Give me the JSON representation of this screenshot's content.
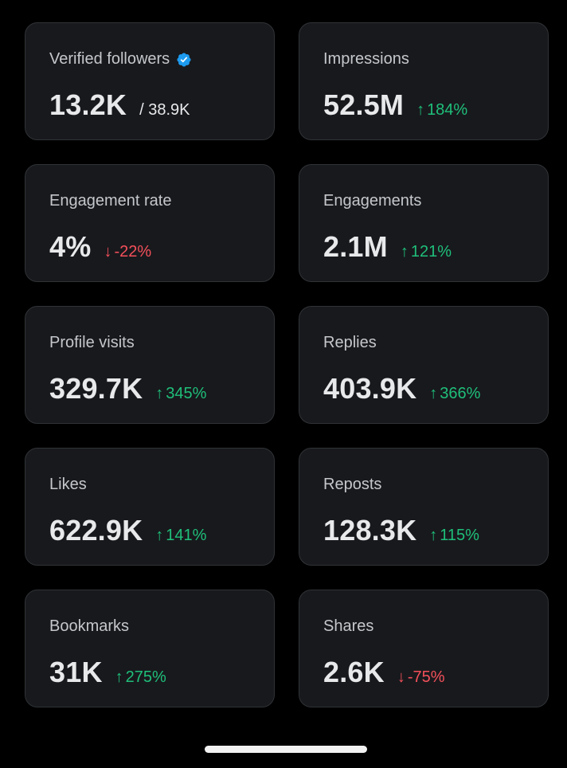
{
  "colors": {
    "background": "#000000",
    "card": "#18191d",
    "up": "#1fbf7a",
    "down": "#f4505a",
    "verified": "#1d9bf0"
  },
  "cards": [
    {
      "label": "Verified followers",
      "value": "13.2K",
      "total": "/ 38.9K",
      "verified_icon": "verified-badge-icon"
    },
    {
      "label": "Impressions",
      "value": "52.5M",
      "arrow": "↑",
      "change": "184%",
      "direction": "up"
    },
    {
      "label": "Engagement rate",
      "value": "4%",
      "arrow": "↓",
      "change": "-22%",
      "direction": "down"
    },
    {
      "label": "Engagements",
      "value": "2.1M",
      "arrow": "↑",
      "change": "121%",
      "direction": "up"
    },
    {
      "label": "Profile visits",
      "value": "329.7K",
      "arrow": "↑",
      "change": "345%",
      "direction": "up"
    },
    {
      "label": "Replies",
      "value": "403.9K",
      "arrow": "↑",
      "change": "366%",
      "direction": "up"
    },
    {
      "label": "Likes",
      "value": "622.9K",
      "arrow": "↑",
      "change": "141%",
      "direction": "up"
    },
    {
      "label": "Reposts",
      "value": "128.3K",
      "arrow": "↑",
      "change": "115%",
      "direction": "up"
    },
    {
      "label": "Bookmarks",
      "value": "31K",
      "arrow": "↑",
      "change": "275%",
      "direction": "up"
    },
    {
      "label": "Shares",
      "value": "2.6K",
      "arrow": "↓",
      "change": "-75%",
      "direction": "down"
    }
  ]
}
